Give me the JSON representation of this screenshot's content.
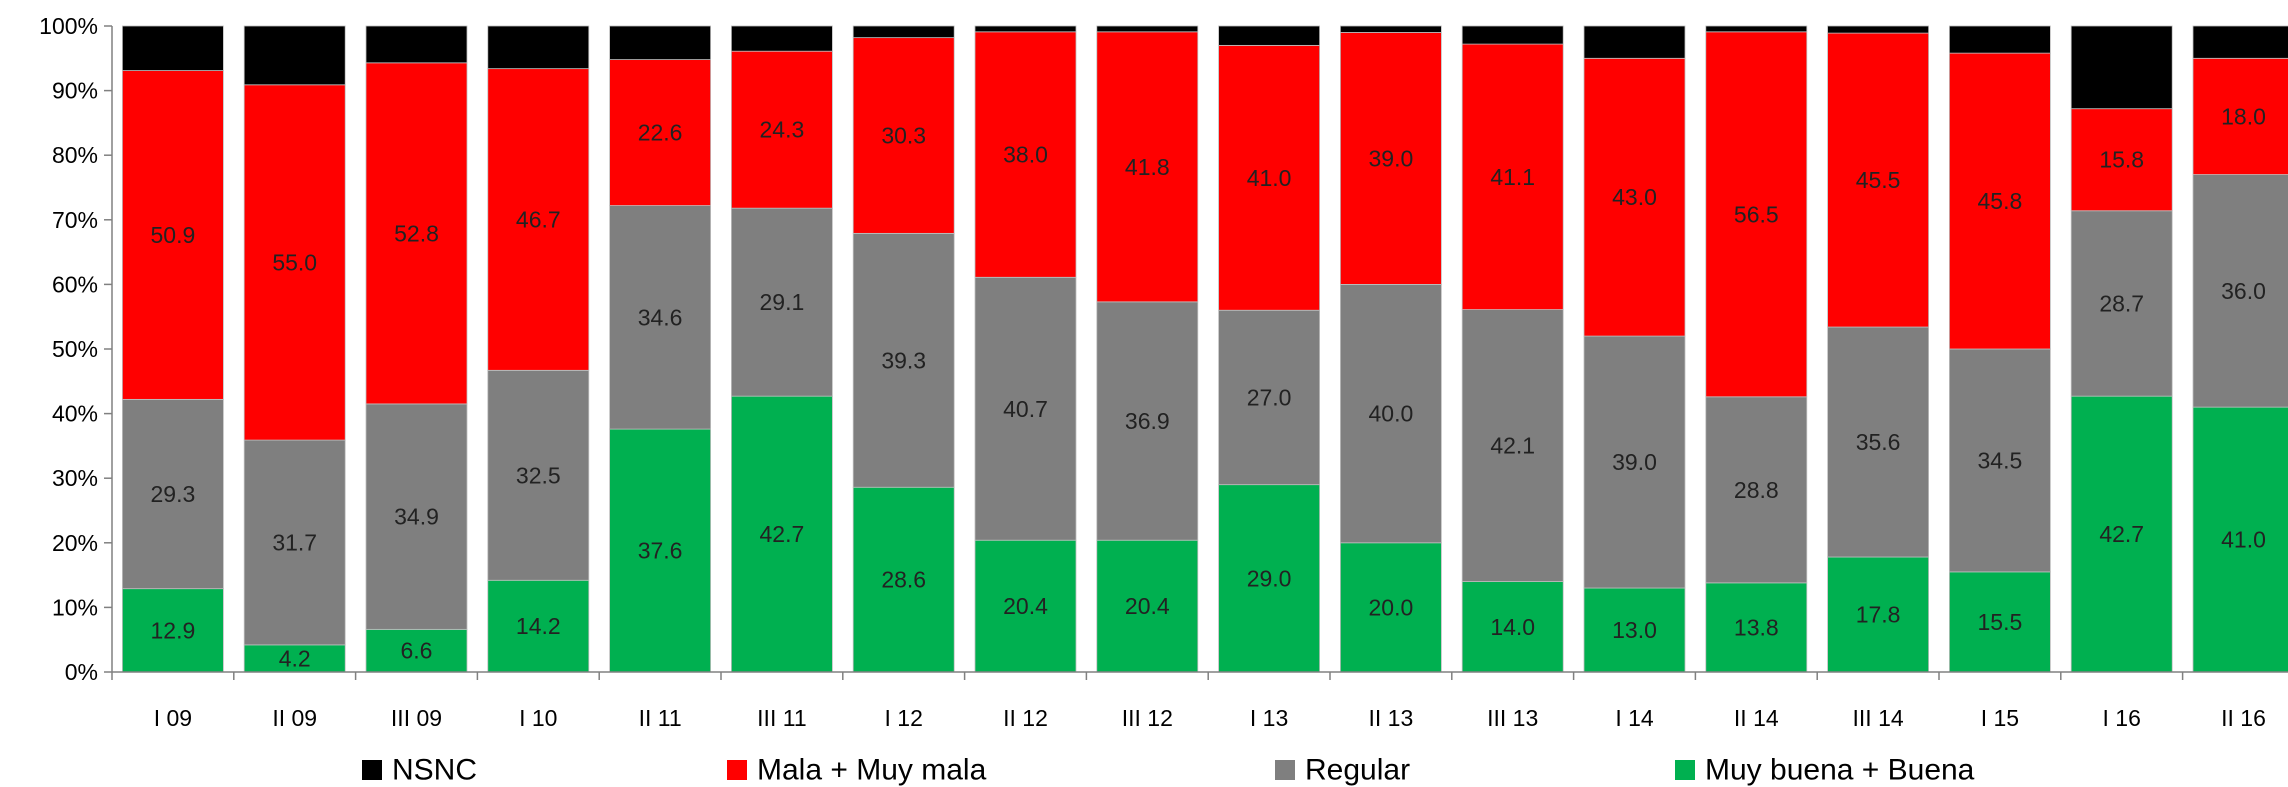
{
  "chart_data": {
    "type": "bar",
    "stacked": true,
    "normalized": true,
    "categories": [
      "I 09",
      "II 09",
      "III 09",
      "I 10",
      "II 11",
      "III 11",
      "I 12",
      "II 12",
      "III 12",
      "I 13",
      "II 13",
      "III 13",
      "I 14",
      "II 14",
      "III 14",
      "I 15",
      "I 16",
      "II 16"
    ],
    "series": [
      {
        "name": "Muy buena + Buena",
        "color": "#00b050",
        "values": [
          12.9,
          4.2,
          6.6,
          14.2,
          37.6,
          42.7,
          28.6,
          20.4,
          20.4,
          29.0,
          20.0,
          14.0,
          13.0,
          13.8,
          17.8,
          15.5,
          42.7,
          41.0
        ],
        "labels": [
          "12.9",
          "4.2",
          "6.6",
          "14.2",
          "37.6",
          "42.7",
          "28.6",
          "20.4",
          "20.4",
          "29.0",
          "20.0",
          "14.0",
          "13.0",
          "13.8",
          "17.8",
          "15.5",
          "42.7",
          "41.0"
        ]
      },
      {
        "name": "Regular",
        "color": "#7f7f7f",
        "values": [
          29.3,
          31.7,
          34.9,
          32.5,
          34.6,
          29.1,
          39.3,
          40.7,
          36.9,
          27.0,
          40.0,
          42.1,
          39.0,
          28.8,
          35.6,
          34.5,
          28.7,
          36.0
        ],
        "labels": [
          "29.3",
          "31.7",
          "34.9",
          "32.5",
          "34.6",
          "29.1",
          "39.3",
          "40.7",
          "36.9",
          "27.0",
          "40.0",
          "42.1",
          "39.0",
          "28.8",
          "35.6",
          "34.5",
          "28.7",
          "36.0"
        ]
      },
      {
        "name": "Mala + Muy mala",
        "color": "#ff0000",
        "values": [
          50.9,
          55.0,
          52.8,
          46.7,
          22.6,
          24.3,
          30.3,
          38.0,
          41.8,
          41.0,
          39.0,
          41.1,
          43.0,
          56.5,
          45.5,
          45.8,
          15.8,
          18.0
        ],
        "labels": [
          "50.9",
          "55.0",
          "52.8",
          "46.7",
          "22.6",
          "24.3",
          "30.3",
          "38.0",
          "41.8",
          "41.0",
          "39.0",
          "41.1",
          "43.0",
          "56.5",
          "45.5",
          "45.8",
          "15.8",
          "18.0"
        ]
      },
      {
        "name": "NSNC",
        "color": "#000000",
        "values": [
          6.9,
          9.1,
          5.7,
          6.6,
          5.2,
          3.9,
          1.8,
          0.9,
          0.9,
          3.0,
          1.0,
          2.8,
          5.0,
          0.9,
          1.1,
          4.2,
          12.8,
          5.0
        ],
        "labels": [
          "",
          "",
          "",
          "",
          "",
          "",
          "",
          "",
          "",
          "",
          "",
          "",
          "",
          "",
          "",
          "",
          "",
          ""
        ]
      }
    ],
    "y_axis": {
      "ticks": [
        "0%",
        "10%",
        "20%",
        "30%",
        "40%",
        "50%",
        "60%",
        "70%",
        "80%",
        "90%",
        "100%"
      ],
      "ylim": [
        0,
        100
      ]
    },
    "grid": false,
    "legend": {
      "placement": "bottom",
      "entries": [
        "NSNC",
        "Mala + Muy mala",
        "Regular",
        "Muy buena + Buena"
      ]
    },
    "title": "",
    "xlabel": "",
    "ylabel": ""
  }
}
